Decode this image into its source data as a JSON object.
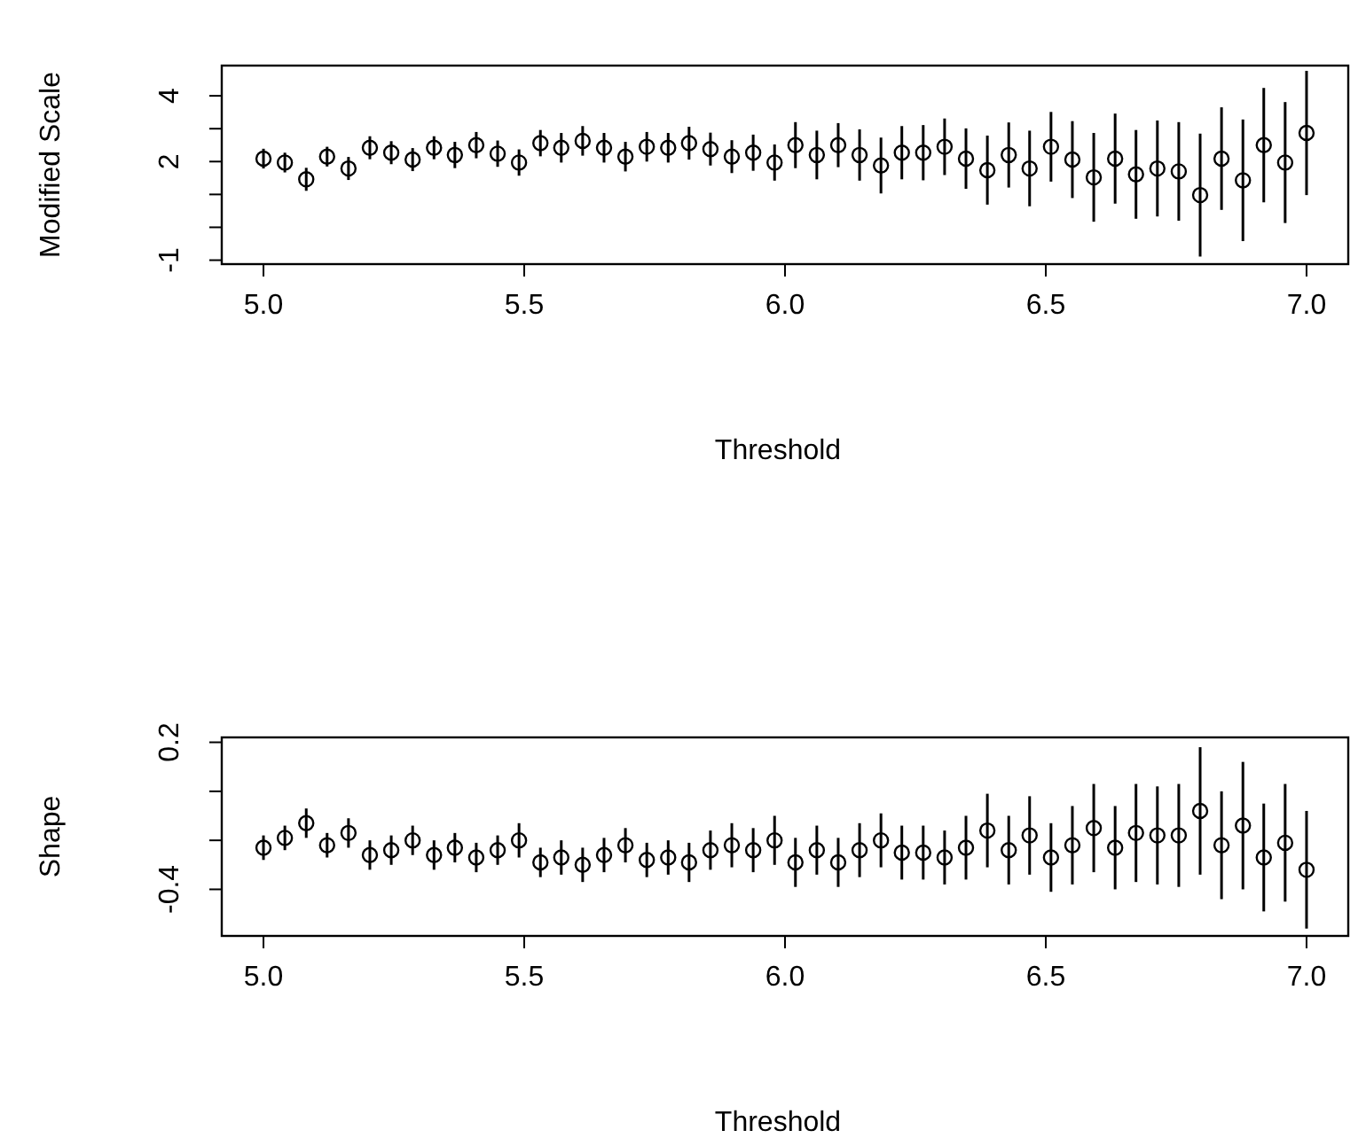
{
  "chart_data": [
    {
      "type": "scatter",
      "marker": "circle",
      "xlabel": "Threshold",
      "ylabel": "Modified Scale",
      "xlim": [
        4.92,
        7.08
      ],
      "ylim": [
        -1.12,
        4.92
      ],
      "xticks": [
        {
          "value": 5,
          "label": "5.0"
        },
        {
          "value": 5.5,
          "label": "5.5"
        },
        {
          "value": 6,
          "label": "6.0"
        },
        {
          "value": 6.5,
          "label": "6.5"
        },
        {
          "value": 7,
          "label": "7.0"
        }
      ],
      "yticks": [
        -1,
        {
          "value": 0,
          "label": null
        },
        {
          "value": 1,
          "label": null
        },
        2,
        {
          "value": 3,
          "label": null
        },
        4
      ],
      "x": [
        5,
        5.041,
        5.082,
        5.122,
        5.163,
        5.204,
        5.245,
        5.286,
        5.327,
        5.367,
        5.408,
        5.449,
        5.49,
        5.531,
        5.571,
        5.612,
        5.653,
        5.694,
        5.735,
        5.776,
        5.816,
        5.857,
        5.898,
        5.939,
        5.98,
        6.02,
        6.061,
        6.102,
        6.143,
        6.184,
        6.224,
        6.265,
        6.306,
        6.347,
        6.388,
        6.429,
        6.469,
        6.51,
        6.551,
        6.592,
        6.633,
        6.673,
        6.714,
        6.755,
        6.796,
        6.837,
        6.878,
        6.918,
        6.959,
        7
      ],
      "values": [
        2.09,
        1.97,
        1.46,
        2.15,
        1.79,
        2.42,
        2.27,
        2.06,
        2.42,
        2.2,
        2.5,
        2.24,
        1.97,
        2.56,
        2.42,
        2.63,
        2.42,
        2.15,
        2.45,
        2.42,
        2.56,
        2.38,
        2.15,
        2.27,
        1.97,
        2.5,
        2.2,
        2.5,
        2.2,
        1.88,
        2.27,
        2.27,
        2.45,
        2.09,
        1.74,
        2.2,
        1.79,
        2.45,
        2.06,
        1.52,
        2.09,
        1.61,
        1.79,
        1.7,
        0.98,
        2.09,
        1.43,
        2.5,
        1.97,
        2.87
      ],
      "errors": [
        0.3,
        0.3,
        0.35,
        0.3,
        0.35,
        0.35,
        0.35,
        0.35,
        0.35,
        0.4,
        0.4,
        0.4,
        0.4,
        0.4,
        0.45,
        0.45,
        0.45,
        0.45,
        0.45,
        0.45,
        0.5,
        0.5,
        0.5,
        0.55,
        0.55,
        0.7,
        0.74,
        0.67,
        0.78,
        0.85,
        0.81,
        0.84,
        0.86,
        0.92,
        1.05,
        0.99,
        1.15,
        1.06,
        1.17,
        1.35,
        1.37,
        1.35,
        1.46,
        1.5,
        1.87,
        1.56,
        1.85,
        1.74,
        1.84,
        1.89
      ]
    },
    {
      "type": "scatter",
      "marker": "circle",
      "xlabel": "Threshold",
      "ylabel": "Shape",
      "xlim": [
        4.92,
        7.08
      ],
      "ylim": [
        -0.59,
        0.22
      ],
      "xticks": [
        {
          "value": 5,
          "label": "5.0"
        },
        {
          "value": 5.5,
          "label": "5.5"
        },
        {
          "value": 6,
          "label": "6.0"
        },
        {
          "value": 6.5,
          "label": "6.5"
        },
        {
          "value": 7,
          "label": "7.0"
        }
      ],
      "yticks": [
        -0.4,
        {
          "value": -0.2,
          "label": null
        },
        {
          "value": 0,
          "label": null
        },
        0.2
      ],
      "x": [
        5,
        5.041,
        5.082,
        5.122,
        5.163,
        5.204,
        5.245,
        5.286,
        5.327,
        5.367,
        5.408,
        5.449,
        5.49,
        5.531,
        5.571,
        5.612,
        5.653,
        5.694,
        5.735,
        5.776,
        5.816,
        5.857,
        5.898,
        5.939,
        5.98,
        6.02,
        6.061,
        6.102,
        6.143,
        6.184,
        6.224,
        6.265,
        6.306,
        6.347,
        6.388,
        6.429,
        6.469,
        6.51,
        6.551,
        6.592,
        6.633,
        6.673,
        6.714,
        6.755,
        6.796,
        6.837,
        6.878,
        6.918,
        6.959,
        7
      ],
      "values": [
        -0.23,
        -0.19,
        -0.13,
        -0.22,
        -0.17,
        -0.26,
        -0.24,
        -0.2,
        -0.26,
        -0.23,
        -0.27,
        -0.24,
        -0.2,
        -0.29,
        -0.27,
        -0.3,
        -0.26,
        -0.22,
        -0.28,
        -0.27,
        -0.29,
        -0.24,
        -0.22,
        -0.24,
        -0.2,
        -0.29,
        -0.24,
        -0.29,
        -0.24,
        -0.2,
        -0.25,
        -0.25,
        -0.27,
        -0.23,
        -0.16,
        -0.24,
        -0.18,
        -0.27,
        -0.22,
        -0.15,
        -0.23,
        -0.17,
        -0.18,
        -0.18,
        -0.08,
        -0.22,
        -0.14,
        -0.27,
        -0.21,
        -0.32
      ],
      "errors": [
        0.05,
        0.05,
        0.06,
        0.05,
        0.06,
        0.06,
        0.06,
        0.06,
        0.06,
        0.06,
        0.06,
        0.06,
        0.07,
        0.06,
        0.07,
        0.07,
        0.07,
        0.07,
        0.07,
        0.07,
        0.08,
        0.08,
        0.09,
        0.09,
        0.1,
        0.1,
        0.1,
        0.1,
        0.11,
        0.11,
        0.11,
        0.11,
        0.11,
        0.13,
        0.15,
        0.14,
        0.16,
        0.14,
        0.16,
        0.18,
        0.17,
        0.2,
        0.2,
        0.21,
        0.26,
        0.22,
        0.26,
        0.22,
        0.24,
        0.24
      ]
    }
  ]
}
